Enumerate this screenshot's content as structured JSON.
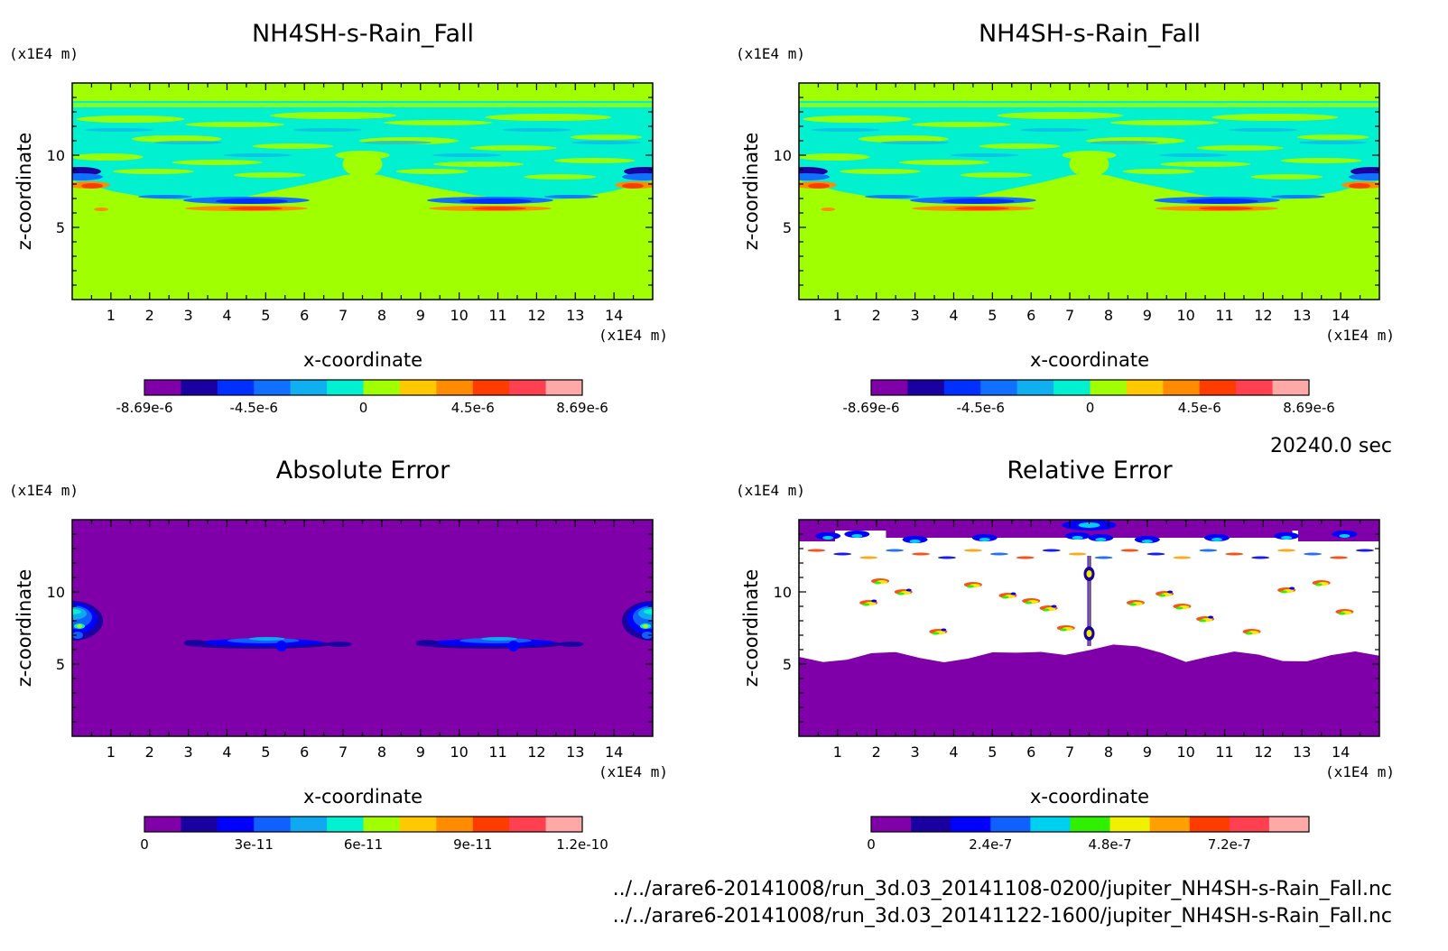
{
  "time_label": "20240.0 sec",
  "footer": {
    "file1": "../../arare6-20141008/run_3d.03_20141108-0200/jupiter_NH4SH-s-Rain_Fall.nc",
    "file2": "../../arare6-20141008/run_3d.03_20141122-1600/jupiter_NH4SH-s-Rain_Fall.nc"
  },
  "chart_data": [
    {
      "type": "heatmap",
      "title": "NH4SH-s-Rain_Fall",
      "xlabel": "x-coordinate",
      "ylabel": "z-coordinate",
      "x_unit": "(x1E4 m)",
      "y_unit": "(x1E4 m)",
      "xlim": [
        0,
        15
      ],
      "ylim": [
        0,
        15
      ],
      "x_ticks": [
        1,
        2,
        3,
        4,
        5,
        6,
        7,
        8,
        9,
        10,
        11,
        12,
        13,
        14
      ],
      "y_ticks": [
        5,
        10
      ],
      "colorbar": {
        "labels": [
          "-8.69e-6",
          "-4.5e-6",
          "0",
          "4.5e-6",
          "8.69e-6"
        ],
        "colors": [
          "#7f00a8",
          "#1a00a0",
          "#0030ff",
          "#1070ff",
          "#10b0f0",
          "#00f0d0",
          "#a0ff00",
          "#ffc800",
          "#ff8c00",
          "#ff3c00",
          "#ff4050",
          "#ffa8a8"
        ]
      },
      "field": "NH4SH-s-Rain_Fall (run 20141108-0200)"
    },
    {
      "type": "heatmap",
      "title": "NH4SH-s-Rain_Fall",
      "xlabel": "x-coordinate",
      "ylabel": "z-coordinate",
      "x_unit": "(x1E4 m)",
      "y_unit": "(x1E4 m)",
      "xlim": [
        0,
        15
      ],
      "ylim": [
        0,
        15
      ],
      "x_ticks": [
        1,
        2,
        3,
        4,
        5,
        6,
        7,
        8,
        9,
        10,
        11,
        12,
        13,
        14
      ],
      "y_ticks": [
        5,
        10
      ],
      "colorbar": {
        "labels": [
          "-8.69e-6",
          "-4.5e-6",
          "0",
          "4.5e-6",
          "8.69e-6"
        ],
        "colors": [
          "#7f00a8",
          "#1a00a0",
          "#0030ff",
          "#1070ff",
          "#10b0f0",
          "#00f0d0",
          "#a0ff00",
          "#ffc800",
          "#ff8c00",
          "#ff3c00",
          "#ff4050",
          "#ffa8a8"
        ]
      },
      "field": "NH4SH-s-Rain_Fall (run 20141122-1600)"
    },
    {
      "type": "heatmap",
      "title": "Absolute Error",
      "xlabel": "x-coordinate",
      "ylabel": "z-coordinate",
      "x_unit": "(x1E4 m)",
      "y_unit": "(x1E4 m)",
      "xlim": [
        0,
        15
      ],
      "ylim": [
        0,
        15
      ],
      "x_ticks": [
        1,
        2,
        3,
        4,
        5,
        6,
        7,
        8,
        9,
        10,
        11,
        12,
        13,
        14
      ],
      "y_ticks": [
        5,
        10
      ],
      "colorbar": {
        "labels": [
          "0",
          "3e-11",
          "6e-11",
          "9e-11",
          "1.2e-10"
        ],
        "colors": [
          "#7f00a8",
          "#1a00a0",
          "#0000ff",
          "#1060ff",
          "#10a8f0",
          "#00f0d0",
          "#a0ff00",
          "#ffc800",
          "#ff8c00",
          "#ff3c00",
          "#ff4050",
          "#ffa8a8"
        ]
      },
      "field": "absolute error"
    },
    {
      "type": "heatmap",
      "title": "Relative Error",
      "xlabel": "x-coordinate",
      "ylabel": "z-coordinate",
      "x_unit": "(x1E4 m)",
      "y_unit": "(x1E4 m)",
      "xlim": [
        0,
        15
      ],
      "ylim": [
        0,
        15
      ],
      "x_ticks": [
        1,
        2,
        3,
        4,
        5,
        6,
        7,
        8,
        9,
        10,
        11,
        12,
        13,
        14
      ],
      "y_ticks": [
        5,
        10
      ],
      "colorbar": {
        "labels": [
          "0",
          "2.4e-7",
          "4.8e-7",
          "7.2e-7"
        ],
        "colors": [
          "#7f00a8",
          "#1a00a0",
          "#0000ff",
          "#1060ff",
          "#00d0f0",
          "#30f000",
          "#f0f000",
          "#ffa000",
          "#ff3c00",
          "#ff4050",
          "#ffa8a8"
        ]
      },
      "field": "relative error"
    }
  ]
}
